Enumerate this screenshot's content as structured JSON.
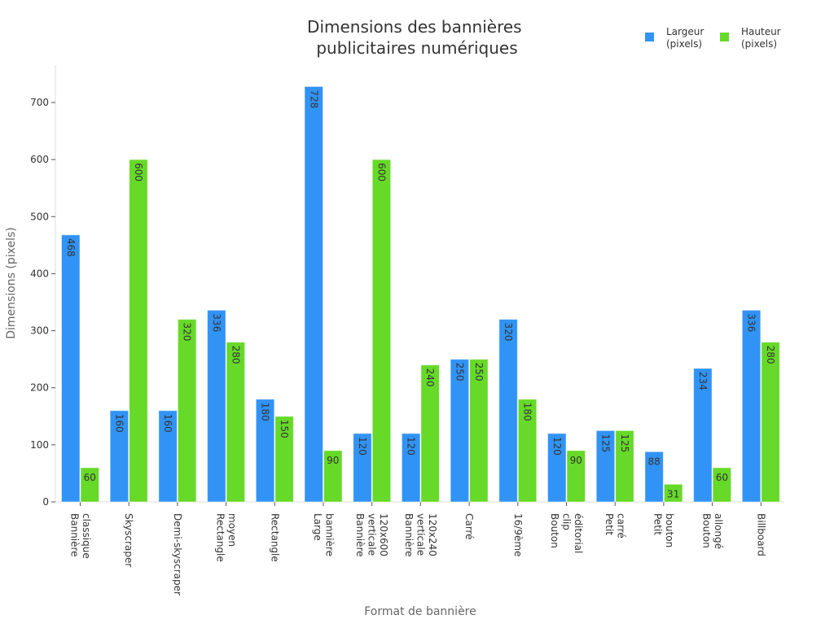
{
  "chart_data": {
    "type": "bar",
    "title": "Dimensions des bannières publicitaires numériques",
    "title_lines": [
      "Dimensions des bannières",
      "publicitaires numériques"
    ],
    "xlabel": "Format de bannière",
    "ylabel": "Dimensions (pixels)",
    "ylim": [
      0,
      765
    ],
    "yticks": [
      0,
      100,
      200,
      300,
      400,
      500,
      600,
      700
    ],
    "grid": false,
    "legend_placement": "top-right",
    "categories": [
      [
        "Bannière",
        "classique"
      ],
      [
        "Skyscraper"
      ],
      [
        "Demi-skyscraper"
      ],
      [
        "Rectangle",
        "moyen"
      ],
      [
        "Rectangle"
      ],
      [
        "Large",
        "bannière"
      ],
      [
        "Bannière",
        "verticale",
        "120x600"
      ],
      [
        "Bannière",
        "verticale",
        "120x240"
      ],
      [
        "Carré"
      ],
      [
        "16/9ème"
      ],
      [
        "Bouton",
        "clip",
        "éditorial"
      ],
      [
        "Petit",
        "carré"
      ],
      [
        "Petit",
        "bouton"
      ],
      [
        "Bouton",
        "allongé"
      ],
      [
        "Billboard"
      ]
    ],
    "series": [
      {
        "name": "Largeur (pixels)",
        "name_lines": [
          "Largeur",
          "(pixels)"
        ],
        "color": "#3193f5",
        "values": [
          468,
          160,
          160,
          336,
          180,
          728,
          120,
          120,
          250,
          320,
          120,
          125,
          88,
          234,
          336
        ]
      },
      {
        "name": "Hauteur (pixels)",
        "name_lines": [
          "Hauteur",
          "(pixels)"
        ],
        "color": "#67d929",
        "values": [
          60,
          600,
          320,
          280,
          150,
          90,
          600,
          240,
          250,
          180,
          90,
          125,
          31,
          60,
          280
        ]
      }
    ]
  }
}
